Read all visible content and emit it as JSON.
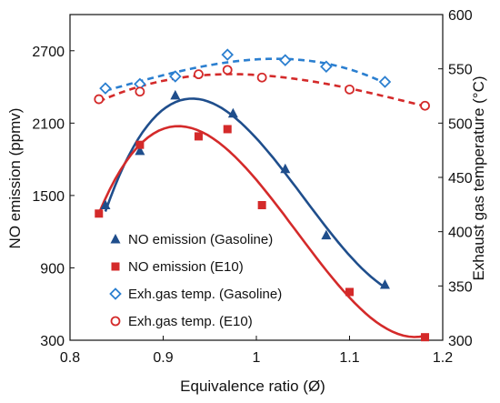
{
  "chart_data": {
    "type": "scatter",
    "xlabel": "Equivalence ratio (Ø)",
    "ylabel": "NO emission (ppmv)",
    "y2label": "Exhaust gas temperature (°C)",
    "xlim": [
      0.8,
      1.2
    ],
    "ylim": [
      300,
      3000
    ],
    "y2lim": [
      300,
      600
    ],
    "xticks": [
      "0.8",
      "0.9",
      "1",
      "1.1",
      "1.2"
    ],
    "yticks": [
      "300",
      "900",
      "1500",
      "2100",
      "2700"
    ],
    "y2ticks": [
      "300",
      "350",
      "400",
      "450",
      "500",
      "550",
      "600"
    ],
    "grid": false,
    "legend_position": "bottom-left",
    "series": [
      {
        "name": "NO emission (Gasoline)",
        "axis": "left",
        "marker": "filled-triangle",
        "color": "#1f4e8c",
        "fit": "solid",
        "x": [
          0.838,
          0.875,
          0.913,
          0.975,
          1.031,
          1.075,
          1.138
        ],
        "y": [
          1420,
          1870,
          2330,
          2180,
          1720,
          1170,
          760
        ]
      },
      {
        "name": "NO emission (E10)",
        "axis": "left",
        "marker": "filled-square",
        "color": "#d42a2a",
        "fit": "solid",
        "x": [
          0.831,
          0.875,
          0.938,
          0.969,
          1.006,
          1.1,
          1.181
        ],
        "y": [
          1350,
          1920,
          1990,
          2050,
          1420,
          700,
          325
        ]
      },
      {
        "name": "Exh.gas temp. (Gasoline)",
        "axis": "right",
        "marker": "open-diamond",
        "color": "#2b7fd0",
        "fit": "dashed",
        "x": [
          0.838,
          0.875,
          0.913,
          0.969,
          1.031,
          1.075,
          1.138
        ],
        "y": [
          532,
          536,
          543,
          563,
          558,
          552,
          538
        ]
      },
      {
        "name": "Exh.gas temp. (E10)",
        "axis": "right",
        "marker": "open-circle",
        "color": "#d42a2a",
        "fit": "dashed",
        "x": [
          0.831,
          0.875,
          0.938,
          0.969,
          1.006,
          1.1,
          1.181
        ],
        "y": [
          522,
          529,
          545,
          549,
          542,
          531,
          516
        ]
      }
    ]
  }
}
